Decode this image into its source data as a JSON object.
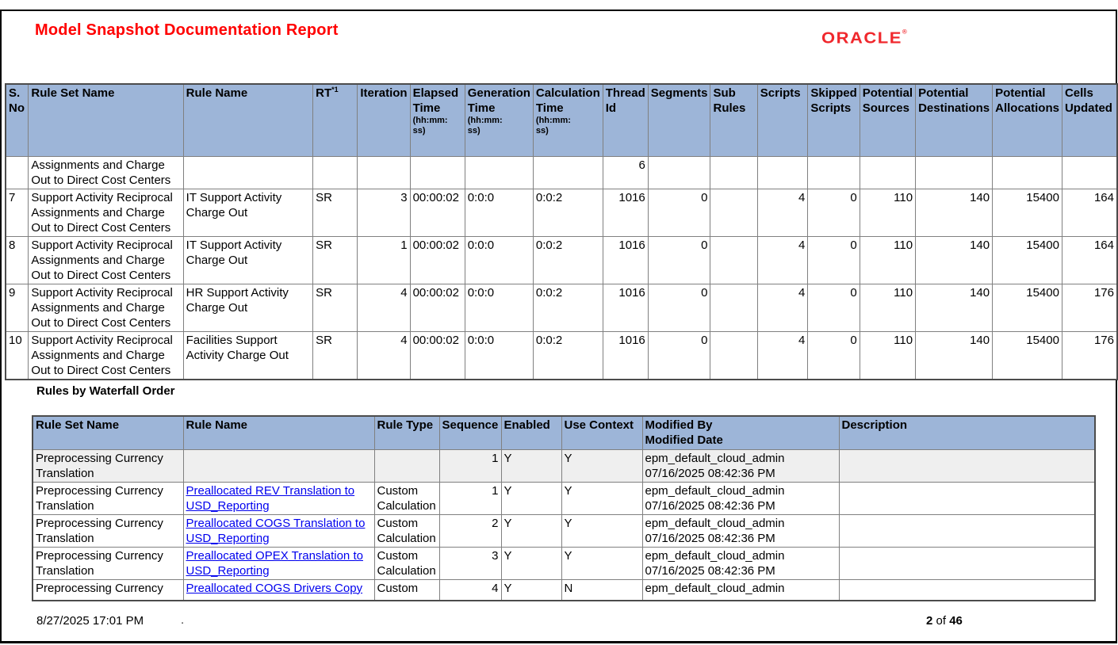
{
  "header": {
    "title": "Model Snapshot Documentation Report",
    "brand": "ORACLE",
    "brand_reg": "®"
  },
  "rules_table": {
    "columns": [
      {
        "label": "S. No"
      },
      {
        "label": "Rule Set Name"
      },
      {
        "label": "Rule Name"
      },
      {
        "label": "RT",
        "sup": "*1"
      },
      {
        "label": "Iteration"
      },
      {
        "label": "Elapsed Time",
        "sub": "(hh:mm:ss)"
      },
      {
        "label": "Generation Time",
        "sub": "(hh:mm:ss)"
      },
      {
        "label": "Calculation Time",
        "sub": "(hh:mm:ss)"
      },
      {
        "label": "Thread Id"
      },
      {
        "label": "Segments"
      },
      {
        "label": "Sub Rules"
      },
      {
        "label": "Scripts"
      },
      {
        "label": "Skipped Scripts"
      },
      {
        "label": "Potential Sources"
      },
      {
        "label": "Potential Destinations"
      },
      {
        "label": "Potential Allocations"
      },
      {
        "label": "Cells Updated"
      }
    ],
    "rows": [
      {
        "cells": [
          "",
          "Assignments and Charge Out to Direct Cost Centers",
          "",
          "",
          "",
          "",
          "",
          "",
          "6",
          "",
          "",
          "",
          "",
          "",
          "",
          "",
          ""
        ]
      },
      {
        "cells": [
          "7",
          "Support Activity Reciprocal Assignments and Charge Out to Direct Cost Centers",
          "IT Support Activity Charge Out",
          "SR",
          "3",
          "00:00:02",
          "0:0:0",
          "0:0:2",
          "1016",
          "0",
          "",
          "4",
          "0",
          "110",
          "140",
          "15400",
          "164"
        ]
      },
      {
        "cells": [
          "8",
          "Support Activity Reciprocal Assignments and Charge Out to Direct Cost Centers",
          "IT Support Activity Charge Out",
          "SR",
          "1",
          "00:00:02",
          "0:0:0",
          "0:0:2",
          "1016",
          "0",
          "",
          "4",
          "0",
          "110",
          "140",
          "15400",
          "164"
        ]
      },
      {
        "cells": [
          "9",
          "Support Activity Reciprocal Assignments and Charge Out to Direct Cost Centers",
          "HR Support Activity Charge Out",
          "SR",
          "4",
          "00:00:02",
          "0:0:0",
          "0:0:2",
          "1016",
          "0",
          "",
          "4",
          "0",
          "110",
          "140",
          "15400",
          "176"
        ]
      },
      {
        "cells": [
          "10",
          "Support Activity Reciprocal Assignments and Charge Out to Direct Cost Centers",
          "Facilities Support Activity Charge Out",
          "SR",
          "4",
          "00:00:02",
          "0:0:0",
          "0:0:2",
          "1016",
          "0",
          "",
          "4",
          "0",
          "110",
          "140",
          "15400",
          "176"
        ]
      }
    ]
  },
  "waterfall_section": {
    "heading": "Rules by Waterfall Order"
  },
  "waterfall_table": {
    "columns": [
      {
        "label": "Rule Set Name"
      },
      {
        "label": "Rule Name"
      },
      {
        "label": "Rule Type"
      },
      {
        "label": "Sequence"
      },
      {
        "label": "Enabled"
      },
      {
        "label": "Use Context"
      },
      {
        "label": "Modified By",
        "label2": "Modified Date"
      },
      {
        "label": "Description"
      }
    ],
    "rows": [
      {
        "cells": [
          "Preprocessing Currency Translation",
          "",
          "",
          "1",
          "Y",
          "Y",
          "epm_default_cloud_admin\n07/16/2025 08:42:36 PM",
          ""
        ]
      },
      {
        "cells": [
          "Preprocessing Currency Translation",
          "Preallocated REV Translation to USD_Reporting",
          "Custom Calculation",
          "1",
          "Y",
          "Y",
          "epm_default_cloud_admin\n07/16/2025 08:42:36 PM",
          ""
        ]
      },
      {
        "cells": [
          "Preprocessing Currency Translation",
          "Preallocated COGS Translation to USD_Reporting",
          "Custom Calculation",
          "2",
          "Y",
          "Y",
          "epm_default_cloud_admin\n07/16/2025 08:42:36 PM",
          ""
        ]
      },
      {
        "cells": [
          "Preprocessing Currency Translation",
          "Preallocated OPEX Translation to USD_Reporting",
          "Custom Calculation",
          "3",
          "Y",
          "Y",
          "epm_default_cloud_admin\n07/16/2025 08:42:36 PM",
          ""
        ]
      },
      {
        "cells": [
          "Preprocessing Currency",
          "Preallocated COGS Drivers Copy",
          "Custom",
          "4",
          "Y",
          "N",
          "epm_default_cloud_admin",
          ""
        ]
      }
    ]
  },
  "footer": {
    "generated": "8/27/2025 17:01 PM",
    "dot": ".",
    "page": "2",
    "of_label": "of",
    "total": "46"
  },
  "colors": {
    "table_header_bg": "#9db5d8",
    "title_red": "#ff0000",
    "oracle_red": "#f0282d",
    "link_blue": "#0000ee",
    "shaded_row_bg": "#efefef",
    "grid_gray": "#808080"
  }
}
